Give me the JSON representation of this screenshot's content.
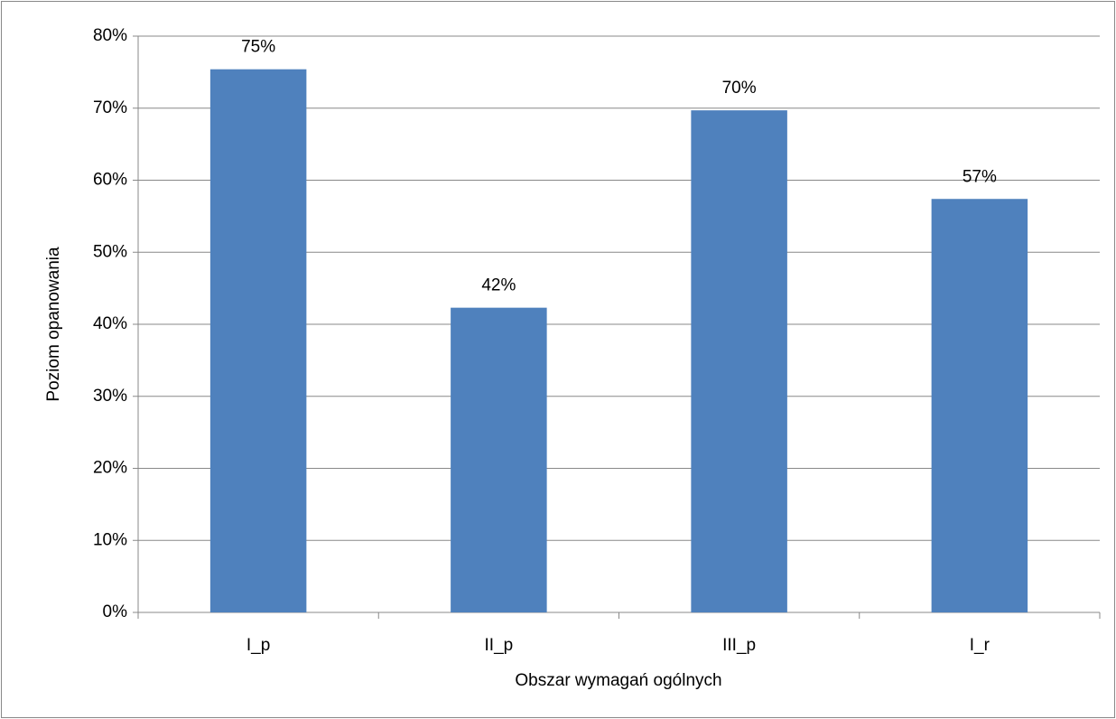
{
  "chart_data": {
    "type": "bar",
    "x_label": "Obszar wymagań ogólnych",
    "y_label": "Poziom opanowania",
    "categories": [
      "I_p",
      "II_p",
      "III_p",
      "I_r"
    ],
    "values": [
      75.4,
      42.3,
      69.7,
      57.4
    ],
    "value_labels": [
      "75%",
      "42%",
      "70%",
      "57%"
    ],
    "color": "#4f81bd",
    "ylim": [
      0,
      80
    ],
    "yticks": [
      {
        "value": 0,
        "label": "0%"
      },
      {
        "value": 10,
        "label": "10%"
      },
      {
        "value": 20,
        "label": "20%"
      },
      {
        "value": 30,
        "label": "30%"
      },
      {
        "value": 40,
        "label": "40%"
      },
      {
        "value": 50,
        "label": "50%"
      },
      {
        "value": 60,
        "label": "60%"
      },
      {
        "value": 70,
        "label": "70%"
      },
      {
        "value": 80,
        "label": "80%"
      }
    ],
    "grid": true
  }
}
